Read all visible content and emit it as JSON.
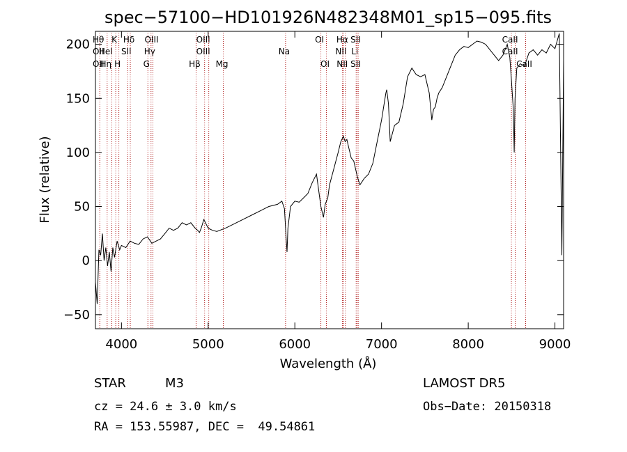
{
  "chart_data": {
    "type": "line",
    "title": "spec−57100−HD101926N482348M01_sp15−095.fits",
    "xlabel": "Wavelength (Å)",
    "ylabel": "Flux (relative)",
    "xlim": [
      3700,
      9100
    ],
    "ylim": [
      -63,
      212
    ],
    "xticks": [
      4000,
      5000,
      6000,
      7000,
      8000,
      9000
    ],
    "yticks": [
      -50,
      0,
      50,
      100,
      150,
      200
    ],
    "ytick_labels": [
      "−50",
      "0",
      "50",
      "100",
      "150",
      "200"
    ],
    "grid": false,
    "line_color": "#000000",
    "marker_color": "#b22222",
    "series": [
      {
        "x": [
          3700,
          3720,
          3740,
          3760,
          3780,
          3800,
          3820,
          3840,
          3860,
          3880,
          3900,
          3920,
          3950,
          3980,
          4000,
          4050,
          4100,
          4150,
          4200,
          4250,
          4300,
          4350,
          4400,
          4450,
          4500,
          4550,
          4600,
          4650,
          4700,
          4750,
          4800,
          4850,
          4880,
          4900,
          4920,
          4950,
          5000,
          5050,
          5100,
          5200,
          5300,
          5400,
          5500,
          5600,
          5700,
          5800,
          5850,
          5880,
          5900,
          5910,
          5920,
          5950,
          6000,
          6050,
          6100,
          6150,
          6200,
          6250,
          6300,
          6330,
          6350,
          6380,
          6400,
          6450,
          6500,
          6530,
          6560,
          6580,
          6600,
          6620,
          6650,
          6680,
          6700,
          6720,
          6750,
          6800,
          6850,
          6900,
          6950,
          7000,
          7030,
          7050,
          7060,
          7080,
          7100,
          7150,
          7200,
          7250,
          7300,
          7350,
          7400,
          7450,
          7500,
          7550,
          7580,
          7600,
          7620,
          7640,
          7660,
          7700,
          7750,
          7800,
          7850,
          7900,
          7950,
          8000,
          8050,
          8100,
          8150,
          8200,
          8250,
          8300,
          8350,
          8400,
          8450,
          8480,
          8500,
          8520,
          8530,
          8540,
          8560,
          8600,
          8650,
          8700,
          8750,
          8800,
          8850,
          8900,
          8950,
          9000,
          9050,
          9080,
          9100
        ],
        "y": [
          -20,
          -40,
          10,
          5,
          25,
          0,
          12,
          -5,
          8,
          -10,
          12,
          3,
          18,
          10,
          14,
          12,
          18,
          16,
          15,
          20,
          22,
          16,
          18,
          20,
          25,
          30,
          28,
          30,
          35,
          33,
          35,
          30,
          28,
          26,
          30,
          38,
          30,
          28,
          27,
          30,
          34,
          38,
          42,
          46,
          50,
          52,
          55,
          48,
          20,
          8,
          30,
          50,
          55,
          54,
          58,
          62,
          72,
          80,
          50,
          40,
          52,
          58,
          70,
          85,
          100,
          110,
          115,
          110,
          112,
          105,
          95,
          92,
          85,
          78,
          70,
          76,
          80,
          90,
          110,
          130,
          145,
          155,
          158,
          145,
          110,
          125,
          128,
          145,
          170,
          178,
          172,
          170,
          172,
          155,
          130,
          140,
          142,
          150,
          155,
          160,
          170,
          180,
          190,
          195,
          198,
          197,
          200,
          203,
          202,
          200,
          195,
          190,
          185,
          190,
          200,
          188,
          165,
          140,
          100,
          150,
          178,
          182,
          180,
          192,
          195,
          190,
          195,
          192,
          200,
          196,
          210,
          5,
          185
        ]
      }
    ],
    "line_markers": [
      {
        "x": 3750,
        "top": "Hθ",
        "mid": "OII",
        "low": "OII"
      },
      {
        "x": 3835,
        "top": "",
        "mid": "HeI",
        "low": "Hη"
      },
      {
        "x": 3889,
        "top": "",
        "mid": "",
        "low": ""
      },
      {
        "x": 3934,
        "top": "K",
        "mid": "",
        "low": ""
      },
      {
        "x": 3970,
        "top": "",
        "mid": "",
        "low": "H"
      },
      {
        "x": 4072,
        "top": "",
        "mid": "SII",
        "low": ""
      },
      {
        "x": 4102,
        "top": "Hδ",
        "mid": "",
        "low": ""
      },
      {
        "x": 4305,
        "top": "",
        "mid": "",
        "low": "G"
      },
      {
        "x": 4341,
        "top": "",
        "mid": "Hγ",
        "low": ""
      },
      {
        "x": 4363,
        "top": "OIII",
        "mid": "",
        "low": ""
      },
      {
        "x": 4861,
        "top": "",
        "mid": "",
        "low": "Hβ"
      },
      {
        "x": 4959,
        "top": "OIII",
        "mid": "OIII",
        "low": ""
      },
      {
        "x": 5007,
        "top": "",
        "mid": "",
        "low": ""
      },
      {
        "x": 5175,
        "top": "",
        "mid": "",
        "low": "Mg"
      },
      {
        "x": 5893,
        "top": "",
        "mid": "Na",
        "low": ""
      },
      {
        "x": 6300,
        "top": "OI",
        "mid": "",
        "low": ""
      },
      {
        "x": 6364,
        "top": "",
        "mid": "",
        "low": "OI"
      },
      {
        "x": 6548,
        "top": "",
        "mid": "NII",
        "low": ""
      },
      {
        "x": 6563,
        "top": "Hα",
        "mid": "",
        "low": "NII"
      },
      {
        "x": 6583,
        "top": "",
        "mid": "",
        "low": ""
      },
      {
        "x": 6707,
        "top": "",
        "mid": "Li",
        "low": ""
      },
      {
        "x": 6717,
        "top": "SII",
        "mid": "",
        "low": "SII"
      },
      {
        "x": 6731,
        "top": "",
        "mid": "",
        "low": ""
      },
      {
        "x": 8498,
        "top": "CaII",
        "mid": "CaII",
        "low": ""
      },
      {
        "x": 8542,
        "top": "",
        "mid": "",
        "low": ""
      },
      {
        "x": 8662,
        "top": "",
        "mid": "",
        "low": "CaII"
      }
    ]
  },
  "info": {
    "object_type": "STAR",
    "subclass": "M3",
    "velocity": "cz = 24.6 ± 3.0 km/s",
    "coords": "RA = 153.55987, DEC =  49.54861",
    "survey": "LAMOST DR5",
    "obs_date": "Obs−Date: 20150318"
  }
}
